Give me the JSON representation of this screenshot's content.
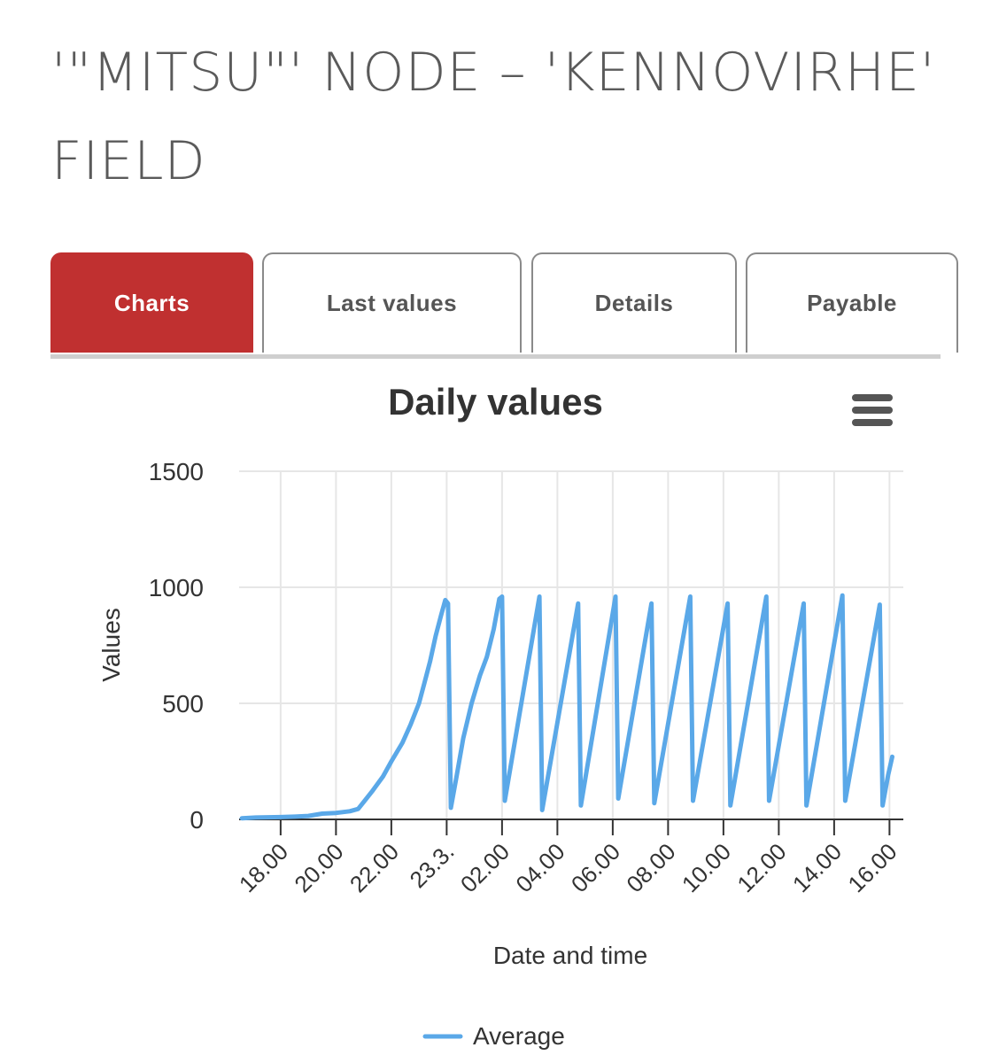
{
  "page": {
    "title": "'\"MITSU\"' NODE – 'KENNOVIRHE' FIELD"
  },
  "tabs": [
    {
      "label": "Charts",
      "active": true
    },
    {
      "label": "Last values",
      "active": false
    },
    {
      "label": "Details",
      "active": false
    },
    {
      "label": "Payable",
      "active": false
    }
  ],
  "chart_data": {
    "type": "line",
    "title": "Daily values",
    "xlabel": "Date and time",
    "ylabel": "Values",
    "ylim": [
      0,
      1500
    ],
    "yticks": [
      0,
      500,
      1000,
      1500
    ],
    "xlim": [
      16.5,
      40.5
    ],
    "xticks": [
      {
        "x": 18,
        "label": "18.00"
      },
      {
        "x": 20,
        "label": "20.00"
      },
      {
        "x": 22,
        "label": "22.00"
      },
      {
        "x": 24,
        "label": "23.3."
      },
      {
        "x": 26,
        "label": "02.00"
      },
      {
        "x": 28,
        "label": "04.00"
      },
      {
        "x": 30,
        "label": "06.00"
      },
      {
        "x": 32,
        "label": "08.00"
      },
      {
        "x": 34,
        "label": "10.00"
      },
      {
        "x": 36,
        "label": "12.00"
      },
      {
        "x": 38,
        "label": "14.00"
      },
      {
        "x": 40,
        "label": "16.00"
      }
    ],
    "grid": true,
    "legend": "bottom-center",
    "series": [
      {
        "name": "Average",
        "color": "#5aa8e8",
        "points": [
          [
            16.6,
            5
          ],
          [
            17.1,
            8
          ],
          [
            18.0,
            10
          ],
          [
            18.5,
            12
          ],
          [
            19.0,
            15
          ],
          [
            19.5,
            25
          ],
          [
            20.0,
            28
          ],
          [
            20.5,
            35
          ],
          [
            20.8,
            45
          ],
          [
            21.0,
            75
          ],
          [
            21.3,
            120
          ],
          [
            21.7,
            185
          ],
          [
            22.0,
            250
          ],
          [
            22.4,
            330
          ],
          [
            22.7,
            410
          ],
          [
            23.0,
            500
          ],
          [
            23.2,
            590
          ],
          [
            23.4,
            680
          ],
          [
            23.6,
            790
          ],
          [
            23.8,
            880
          ],
          [
            23.95,
            945
          ],
          [
            24.05,
            930
          ],
          [
            24.15,
            50
          ],
          [
            24.35,
            180
          ],
          [
            24.6,
            350
          ],
          [
            24.9,
            500
          ],
          [
            25.2,
            620
          ],
          [
            25.45,
            700
          ],
          [
            25.7,
            820
          ],
          [
            25.9,
            950
          ],
          [
            26.0,
            960
          ],
          [
            26.1,
            80
          ],
          [
            27.35,
            960
          ],
          [
            27.45,
            40
          ],
          [
            28.75,
            930
          ],
          [
            28.85,
            60
          ],
          [
            30.1,
            960
          ],
          [
            30.2,
            90
          ],
          [
            31.4,
            930
          ],
          [
            31.5,
            70
          ],
          [
            32.8,
            960
          ],
          [
            32.9,
            80
          ],
          [
            34.15,
            930
          ],
          [
            34.25,
            60
          ],
          [
            35.55,
            960
          ],
          [
            35.65,
            80
          ],
          [
            36.9,
            930
          ],
          [
            37.0,
            60
          ],
          [
            38.3,
            965
          ],
          [
            38.4,
            80
          ],
          [
            39.65,
            925
          ],
          [
            39.75,
            60
          ],
          [
            39.95,
            190
          ],
          [
            40.1,
            270
          ]
        ]
      }
    ]
  }
}
